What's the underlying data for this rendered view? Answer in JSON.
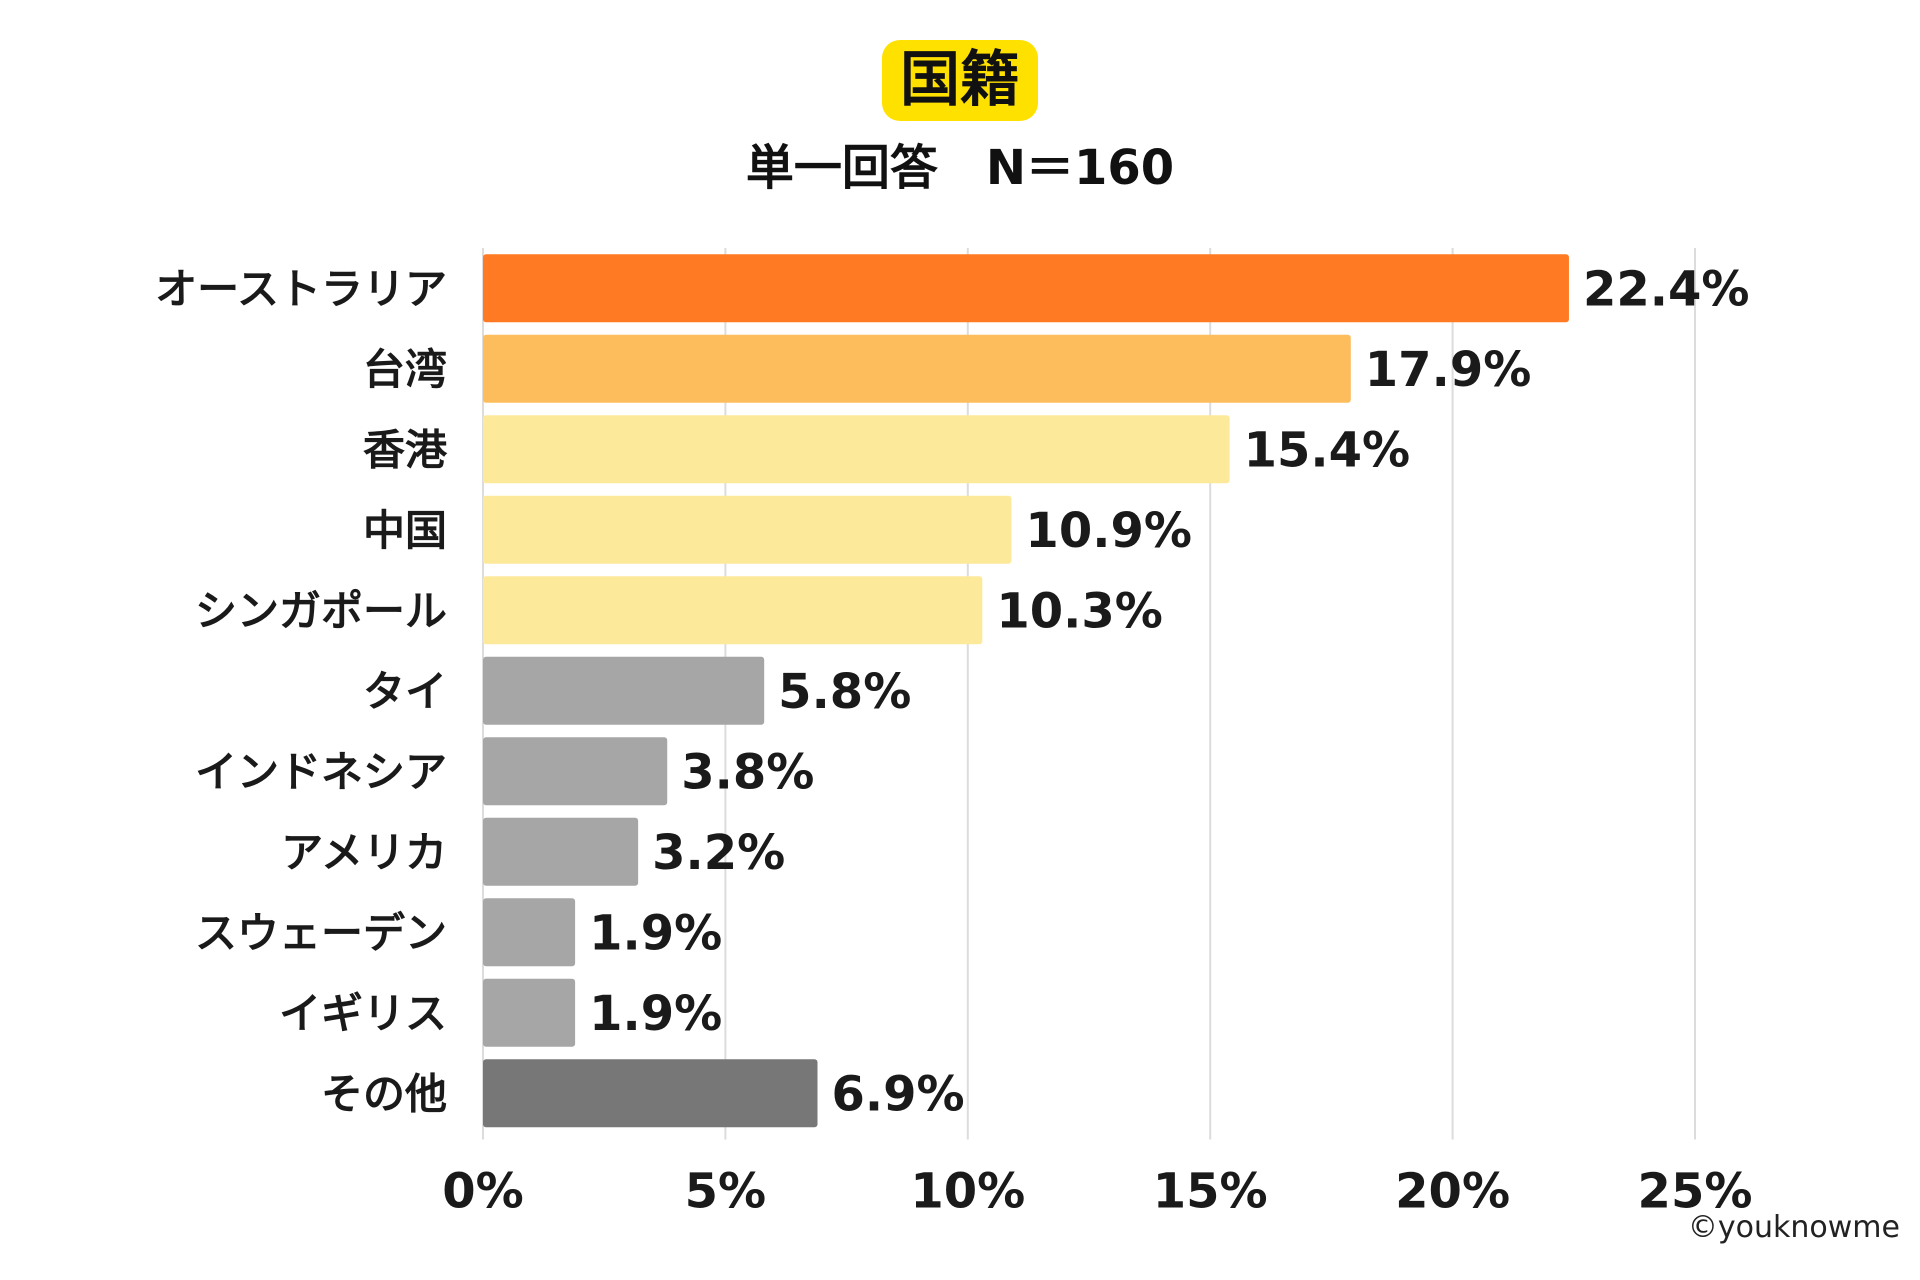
{
  "header": {
    "title": "国籍",
    "subtitle": "単一回答　N＝160"
  },
  "footer": {
    "credit": "©youknowme"
  },
  "chart_data": {
    "type": "bar",
    "orientation": "horizontal",
    "title": "国籍",
    "subtitle": "単一回答　N＝160",
    "xlabel": "",
    "ylabel": "",
    "xlim": [
      0,
      25
    ],
    "x_ticks": [
      0,
      5,
      10,
      15,
      20,
      25
    ],
    "x_tick_labels": [
      "0%",
      "5%",
      "10%",
      "15%",
      "20%",
      "25%"
    ],
    "grid": true,
    "categories": [
      "オーストラリア",
      "台湾",
      "香港",
      "中国",
      "シンガポール",
      "タイ",
      "インドネシア",
      "アメリカ",
      "スウェーデン",
      "イギリス",
      "その他"
    ],
    "values": [
      22.4,
      17.9,
      15.4,
      10.9,
      10.3,
      5.8,
      3.8,
      3.2,
      1.9,
      1.9,
      6.9
    ],
    "value_labels": [
      "22.4%",
      "17.9%",
      "15.4%",
      "10.9%",
      "10.3%",
      "5.8%",
      "3.8%",
      "3.2%",
      "1.9%",
      "1.9%",
      "6.9%"
    ],
    "colors": [
      "#ff7a22",
      "#fdbd5c",
      "#fde99a",
      "#fde99a",
      "#fde99a",
      "#a6a6a6",
      "#a6a6a6",
      "#a6a6a6",
      "#a6a6a6",
      "#a6a6a6",
      "#777777"
    ]
  }
}
